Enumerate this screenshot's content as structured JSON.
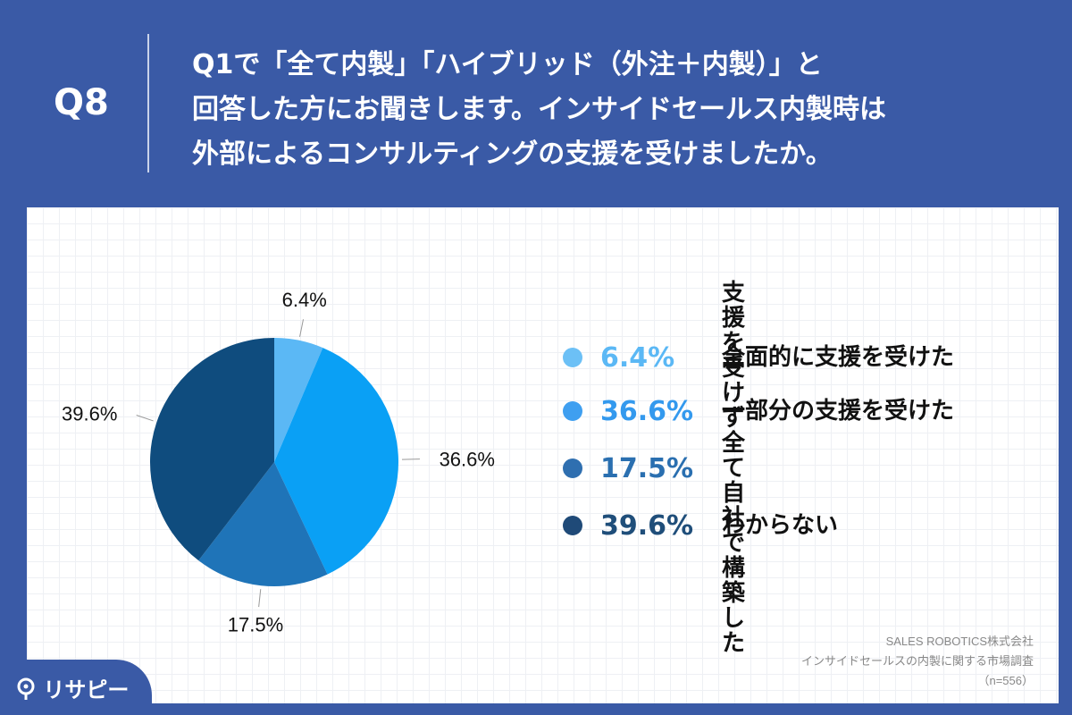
{
  "question": {
    "number": "Q8",
    "lines": [
      "Q1で「全て内製」「ハイブリッド（外注＋内製）」と",
      "回答した方にお聞きします。インサイドセールス内製時は",
      "外部によるコンサルティングの支援を受けましたか。"
    ]
  },
  "chart_data": {
    "type": "pie",
    "slices": [
      {
        "label": "全面的に支援を受けた",
        "value": 6.4,
        "value_label": "6.4%",
        "color": "#5bb8f5"
      },
      {
        "label": "一部分の支援を受けた",
        "value": 36.6,
        "value_label": "36.6%",
        "color": "#0aa0f5"
      },
      {
        "label": "支援を受けず\n全て自社で構築した",
        "value": 17.5,
        "value_label": "17.5%",
        "color": "#1f74b8"
      },
      {
        "label": "わからない",
        "value": 39.6,
        "value_label": "39.6%",
        "color": "#0f4c7e"
      }
    ],
    "start_angle": "12 o'clock",
    "direction": "clockwise",
    "legend_position": "right"
  },
  "legend_colors": {
    "pct_colors": [
      "#5bb8f5",
      "#3399ee",
      "#2a6fb0",
      "#1f4e7a"
    ],
    "dot_colors": [
      "#6cc0f6",
      "#3f9ff0",
      "#2f6fb0",
      "#1f4a78"
    ]
  },
  "source": {
    "company": "SALES ROBOTICS株式会社",
    "survey": "インサイドセールスの内製に関する市場調査",
    "sample": "（n=556）"
  },
  "logo": {
    "text": "リサピー",
    "icon": "pin-logo-icon"
  }
}
